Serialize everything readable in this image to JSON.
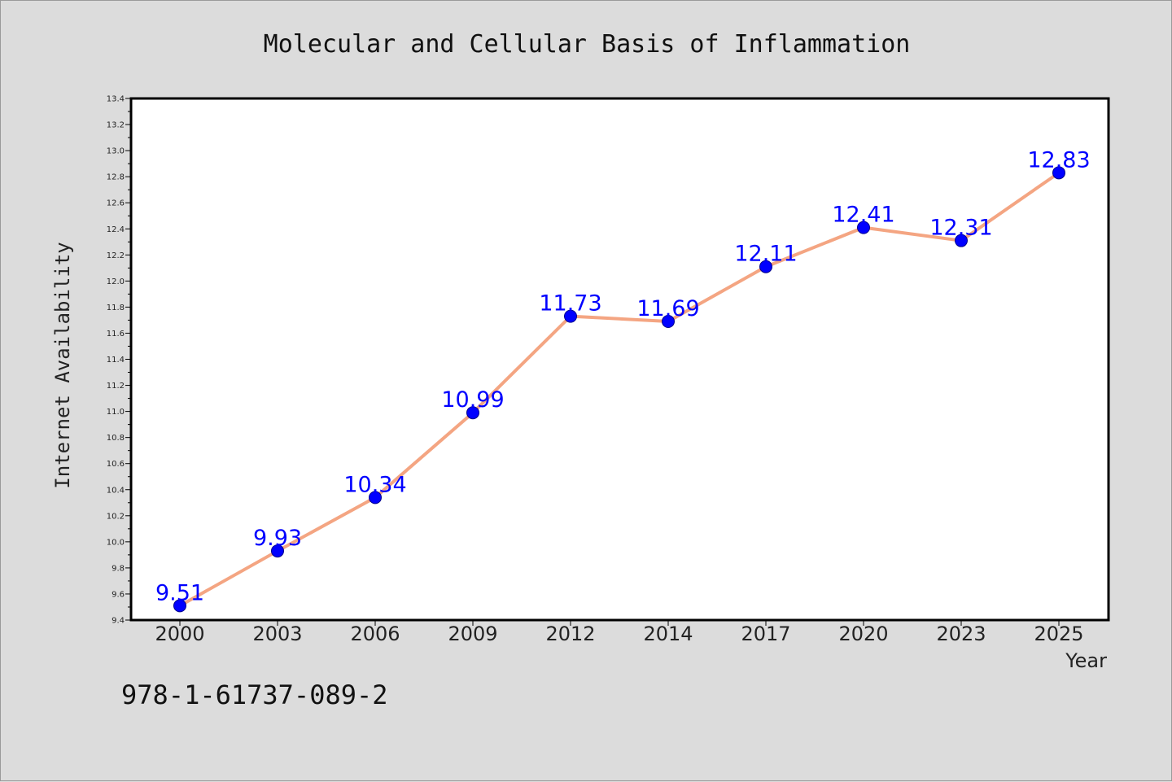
{
  "footer_text": "978-1-61737-089-2",
  "chart_data": {
    "type": "line",
    "title": "Molecular and Cellular Basis of Inflammation",
    "xlabel": "Year",
    "ylabel": "Internet Availability",
    "categories": [
      "2000",
      "2003",
      "2006",
      "2009",
      "2012",
      "2014",
      "2017",
      "2020",
      "2023",
      "2025"
    ],
    "series": [
      {
        "values": [
          9.51,
          9.93,
          10.34,
          10.99,
          11.73,
          11.69,
          12.11,
          12.41,
          12.31,
          12.83
        ],
        "labels": [
          "9.51",
          "9.93",
          "10.34",
          "10.99",
          "11.73",
          "11.69",
          "12.11",
          "12.41",
          "12.31",
          "12.83"
        ],
        "line_color": "#f4a582",
        "marker_color": "#0000ff",
        "label_color": "#0000ff"
      }
    ],
    "ylim": [
      9.4,
      13.4
    ],
    "yticks": [
      "9.4",
      "9.6",
      "9.8",
      "10.0",
      "10.2",
      "10.4",
      "10.6",
      "10.8",
      "11.0",
      "11.2",
      "11.4",
      "11.6",
      "11.8",
      "12.0",
      "12.2",
      "12.4",
      "12.6",
      "12.8",
      "13.0",
      "13.2",
      "13.4"
    ],
    "grid": false,
    "background_color": "#dcdcdc",
    "plot_background_color": "#ffffff"
  }
}
